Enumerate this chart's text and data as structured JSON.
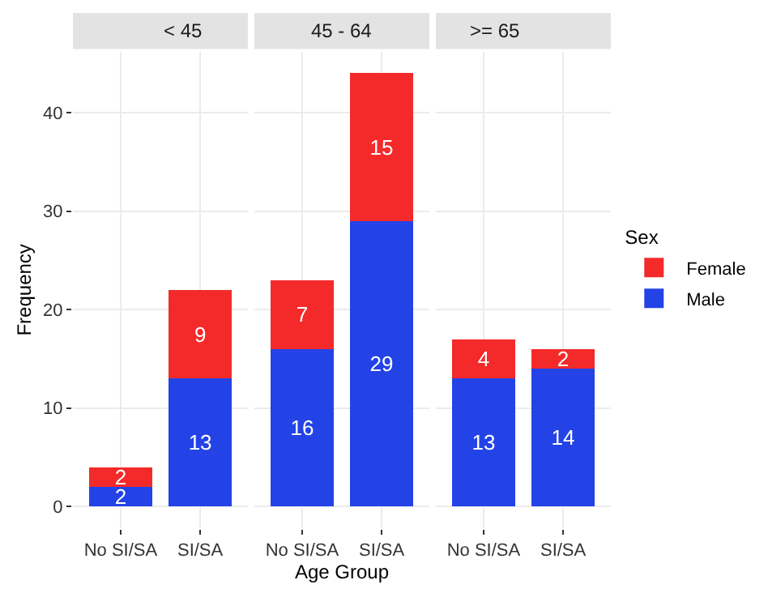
{
  "chart_data": [
    {
      "type": "bar",
      "title": "< 45",
      "ylabel": "Frequency",
      "categories": [
        "No SI/SA",
        "SI/SA"
      ],
      "stacked": true,
      "data_labels": true,
      "grid": true,
      "legend": "right",
      "legend_title": "Sex",
      "ylim": [
        -2.2,
        46.2
      ],
      "yticks": [
        0,
        10,
        20,
        30,
        40
      ],
      "series": [
        {
          "name": "Male",
          "color": "#2343e6",
          "values": [
            2,
            13
          ]
        },
        {
          "name": "Female",
          "color": "#f42a2a",
          "values": [
            2,
            9
          ]
        }
      ]
    },
    {
      "type": "bar",
      "title": "45 - 64",
      "xlabel": "Age Group",
      "categories": [
        "No SI/SA",
        "SI/SA"
      ],
      "stacked": true,
      "data_labels": true,
      "grid": true,
      "tick_labels": "x",
      "ylim": [
        -2.2,
        46.2
      ],
      "yticks": [
        0,
        10,
        20,
        30,
        40
      ],
      "series": [
        {
          "color": "#2343e6",
          "values": [
            16,
            29
          ]
        },
        {
          "color": "#f42a2a",
          "values": [
            7,
            15
          ]
        }
      ]
    },
    {
      "type": "bar",
      "title": ">= 65",
      "categories": [
        "No SI/SA",
        "SI/SA"
      ],
      "stacked": true,
      "data_labels": true,
      "grid": true,
      "tick_labels": "x",
      "ylim": [
        -2.2,
        46.2
      ],
      "yticks": [
        0,
        10,
        20,
        30,
        40
      ],
      "series": [
        {
          "color": "#2343e6",
          "values": [
            13,
            14
          ]
        },
        {
          "color": "#f42a2a",
          "values": [
            4,
            2
          ]
        }
      ]
    }
  ]
}
